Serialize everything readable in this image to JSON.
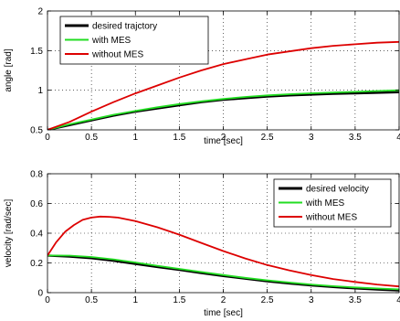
{
  "chart_data": [
    {
      "type": "line",
      "xlabel": "time [sec]",
      "ylabel": "angle [rad]",
      "xlim": [
        0,
        4
      ],
      "ylim": [
        0.5,
        2
      ],
      "xticks": [
        0,
        0.5,
        1,
        1.5,
        2,
        2.5,
        3,
        3.5,
        4
      ],
      "yticks": [
        0.5,
        1,
        1.5,
        2
      ],
      "xtick_labels": [
        "0",
        "0.5",
        "1",
        "1.5",
        "2",
        "2.5",
        "3",
        "3.5",
        "4"
      ],
      "ytick_labels": [
        "0.5",
        "1",
        "1.5",
        "2"
      ],
      "grid": true,
      "legend_position": "top-left",
      "series": [
        {
          "name": "desired trajctory",
          "color": "#000000",
          "x": [
            0,
            0.25,
            0.5,
            0.75,
            1,
            1.25,
            1.5,
            1.75,
            2,
            2.25,
            2.5,
            2.75,
            3,
            3.25,
            3.5,
            3.75,
            4
          ],
          "y": [
            0.5,
            0.56,
            0.62,
            0.68,
            0.73,
            0.77,
            0.81,
            0.85,
            0.88,
            0.9,
            0.92,
            0.935,
            0.945,
            0.955,
            0.962,
            0.968,
            0.975
          ]
        },
        {
          "name": "with MES",
          "color": "#22dd22",
          "x": [
            0,
            0.25,
            0.5,
            0.75,
            1,
            1.25,
            1.5,
            1.75,
            2,
            2.25,
            2.5,
            2.75,
            3,
            3.25,
            3.5,
            3.75,
            4
          ],
          "y": [
            0.5,
            0.57,
            0.63,
            0.69,
            0.74,
            0.785,
            0.825,
            0.86,
            0.89,
            0.915,
            0.935,
            0.95,
            0.962,
            0.972,
            0.98,
            0.99,
            1.0
          ]
        },
        {
          "name": "without MES",
          "color": "#dd0000",
          "x": [
            0,
            0.25,
            0.5,
            0.75,
            1,
            1.25,
            1.5,
            1.75,
            2,
            2.25,
            2.5,
            2.75,
            3,
            3.25,
            3.5,
            3.75,
            4
          ],
          "y": [
            0.5,
            0.6,
            0.73,
            0.85,
            0.96,
            1.06,
            1.16,
            1.25,
            1.33,
            1.39,
            1.45,
            1.49,
            1.53,
            1.56,
            1.58,
            1.6,
            1.61
          ]
        }
      ]
    },
    {
      "type": "line",
      "xlabel": "time [sec]",
      "ylabel": "velocity [rad/sec]",
      "xlim": [
        0,
        4
      ],
      "ylim": [
        0,
        0.8
      ],
      "xticks": [
        0,
        0.5,
        1,
        1.5,
        2,
        2.5,
        3,
        3.5,
        4
      ],
      "yticks": [
        0,
        0.2,
        0.4,
        0.6,
        0.8
      ],
      "xtick_labels": [
        "0",
        "0.5",
        "1",
        "1.5",
        "2",
        "2.5",
        "3",
        "3.5",
        "4"
      ],
      "ytick_labels": [
        "0",
        "0.2",
        "0.4",
        "0.6",
        "0.8"
      ],
      "grid": true,
      "legend_position": "top-right",
      "series": [
        {
          "name": "desired velocity",
          "color": "#000000",
          "x": [
            0,
            0.25,
            0.5,
            0.75,
            1,
            1.25,
            1.5,
            1.75,
            2,
            2.25,
            2.5,
            2.75,
            3,
            3.25,
            3.5,
            3.75,
            4
          ],
          "y": [
            0.25,
            0.243,
            0.232,
            0.215,
            0.194,
            0.173,
            0.153,
            0.132,
            0.112,
            0.094,
            0.076,
            0.062,
            0.049,
            0.038,
            0.029,
            0.021,
            0.015
          ]
        },
        {
          "name": "with MES",
          "color": "#22dd22",
          "x": [
            0,
            0.25,
            0.5,
            0.75,
            1,
            1.25,
            1.5,
            1.75,
            2,
            2.25,
            2.5,
            2.75,
            3,
            3.25,
            3.5,
            3.75,
            4
          ],
          "y": [
            0.25,
            0.249,
            0.24,
            0.224,
            0.203,
            0.181,
            0.16,
            0.139,
            0.119,
            0.1,
            0.083,
            0.068,
            0.055,
            0.044,
            0.035,
            0.028,
            0.022
          ]
        },
        {
          "name": "without MES",
          "color": "#dd0000",
          "x": [
            0,
            0.1,
            0.2,
            0.3,
            0.4,
            0.5,
            0.6,
            0.7,
            0.8,
            1,
            1.25,
            1.5,
            1.75,
            2,
            2.25,
            2.5,
            2.75,
            3,
            3.25,
            3.5,
            3.75,
            4
          ],
          "y": [
            0.25,
            0.34,
            0.41,
            0.455,
            0.49,
            0.505,
            0.512,
            0.51,
            0.505,
            0.482,
            0.44,
            0.39,
            0.335,
            0.28,
            0.23,
            0.186,
            0.15,
            0.118,
            0.092,
            0.072,
            0.055,
            0.042
          ]
        }
      ]
    }
  ]
}
